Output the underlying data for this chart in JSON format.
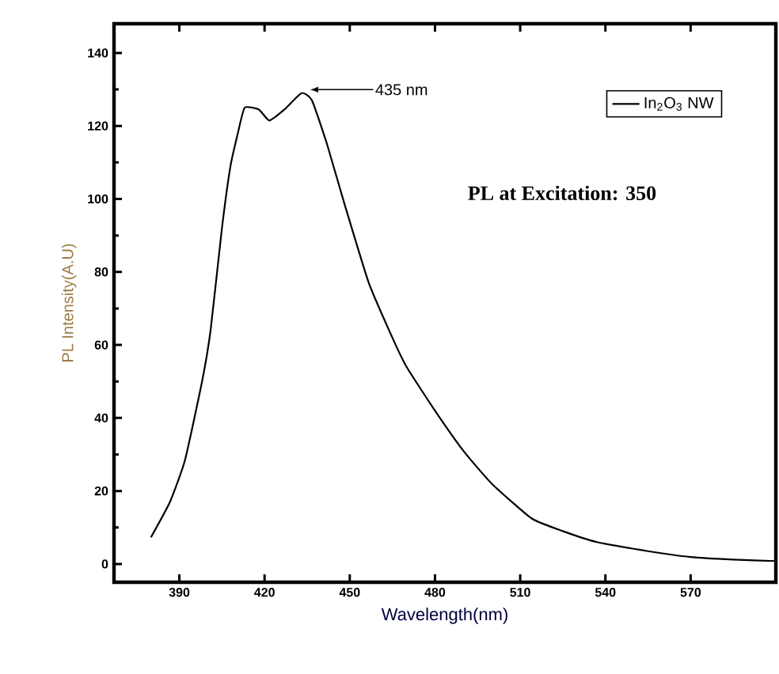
{
  "chart_data": {
    "type": "line",
    "xlabel": "Wavelength(nm)",
    "ylabel": "PL Intensity(A.U)",
    "x": [
      380,
      386.7,
      392,
      398,
      401,
      405,
      408,
      410.6,
      413,
      418,
      421.7,
      427,
      433,
      436.7,
      442,
      448,
      456.7,
      465,
      470,
      480,
      490,
      500,
      514,
      525,
      537,
      555,
      570,
      585,
      600
    ],
    "series": [
      {
        "name": "In$_{2}$O$_{3}$ NW",
        "color": "#000000",
        "values": [
          7.3,
          17,
          28.5,
          50,
          64,
          92,
          109,
          118,
          125,
          124.5,
          121.5,
          124.5,
          129,
          127,
          115,
          99,
          77,
          62,
          54,
          42,
          31,
          22,
          12.5,
          9,
          6,
          3.5,
          1.9,
          1.2,
          0.8
        ]
      }
    ],
    "xlim": [
      367,
      600
    ],
    "ylim": [
      -5,
      148
    ],
    "xticks": [
      390,
      420,
      450,
      480,
      510,
      540,
      570
    ],
    "yticks": [
      0,
      20,
      40,
      60,
      80,
      100,
      120,
      140
    ],
    "annotations": [
      "435 nm",
      "PL at Excitation:  350"
    ],
    "legend": "top right",
    "marker": "none",
    "line_style": "solid",
    "grid": false
  }
}
